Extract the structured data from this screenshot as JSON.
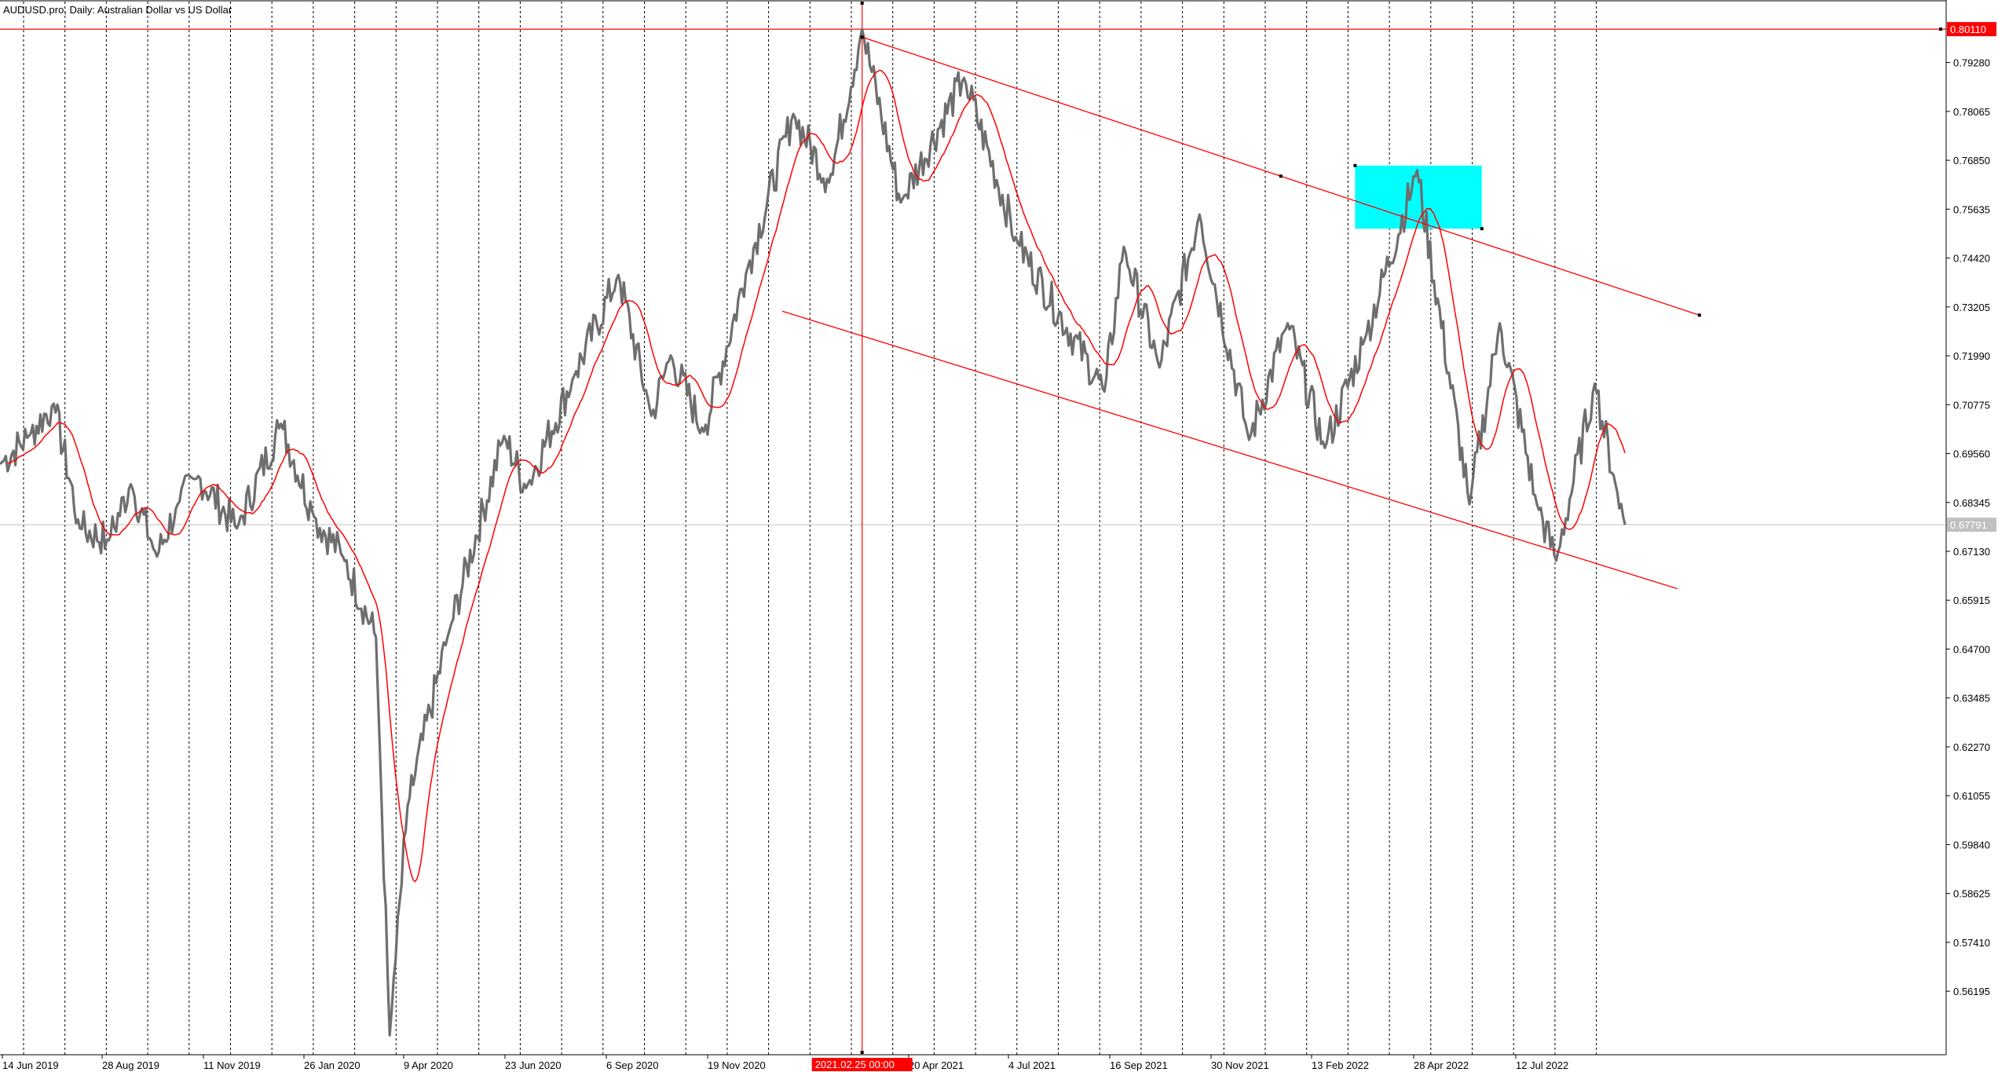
{
  "header": {
    "symbol_title": "AUDUSD.pro, Daily:  Australian Dollar vs US Dollar"
  },
  "colors": {
    "price_bars": "#6e6e6e",
    "moving_average": "#ff0000",
    "channel": "#ff0000",
    "period_separator": "#000000",
    "highlight_box": "#00ffff",
    "current_price_line": "#c0c0c0",
    "tag_background": "#ff0000",
    "current_tag_background": "#c0c0c0"
  },
  "chart_data": {
    "type": "line",
    "symbol": "AUDUSD.pro",
    "timeframe": "Daily",
    "description": "Australian Dollar vs US Dollar",
    "ylim": [
      0.553,
      0.806
    ],
    "y_ticks": [
      "0.79280",
      "0.78065",
      "0.76850",
      "0.75635",
      "0.74420",
      "0.73205",
      "0.71990",
      "0.70775",
      "0.69560",
      "0.68345",
      "0.67130",
      "0.65915",
      "0.64700",
      "0.63485",
      "0.62270",
      "0.61055",
      "0.59840",
      "0.58625",
      "0.57410",
      "0.56195"
    ],
    "x_tick_labels": [
      "14 Jun 2019",
      "28 Aug 2019",
      "11 Nov 2019",
      "26 Jan 2020",
      "9 Apr 2020",
      "23 Jun 2020",
      "6 Sep 2020",
      "19 Nov 2020",
      "20 Apr 2021",
      "4 Jul 2021",
      "16 Sep 2021",
      "30 Nov 2021",
      "13 Feb 2022",
      "28 Apr 2022",
      "12 Jul 2022"
    ],
    "highlighted_date_label": "2021.02.25 00:00",
    "high_price_label": "0.80110",
    "current_price_label": "0.67791",
    "current_price": 0.67791,
    "high_price": 0.8011,
    "price_series": [
      {
        "date": "2019-06-10",
        "value": 0.693
      },
      {
        "date": "2019-07-01",
        "value": 0.7
      },
      {
        "date": "2019-07-19",
        "value": 0.708
      },
      {
        "date": "2019-08-07",
        "value": 0.677
      },
      {
        "date": "2019-08-28",
        "value": 0.674
      },
      {
        "date": "2019-09-13",
        "value": 0.688
      },
      {
        "date": "2019-10-02",
        "value": 0.67
      },
      {
        "date": "2019-10-17",
        "value": 0.683
      },
      {
        "date": "2019-11-01",
        "value": 0.69
      },
      {
        "date": "2019-11-29",
        "value": 0.677
      },
      {
        "date": "2019-12-31",
        "value": 0.703
      },
      {
        "date": "2020-01-24",
        "value": 0.68
      },
      {
        "date": "2020-02-14",
        "value": 0.67
      },
      {
        "date": "2020-03-09",
        "value": 0.65
      },
      {
        "date": "2020-03-19",
        "value": 0.551
      },
      {
        "date": "2020-04-01",
        "value": 0.608
      },
      {
        "date": "2020-04-30",
        "value": 0.65
      },
      {
        "date": "2020-06-10",
        "value": 0.7
      },
      {
        "date": "2020-06-26",
        "value": 0.687
      },
      {
        "date": "2020-07-31",
        "value": 0.715
      },
      {
        "date": "2020-09-01",
        "value": 0.74
      },
      {
        "date": "2020-09-25",
        "value": 0.705
      },
      {
        "date": "2020-10-09",
        "value": 0.72
      },
      {
        "date": "2020-11-02",
        "value": 0.701
      },
      {
        "date": "2020-12-04",
        "value": 0.742
      },
      {
        "date": "2021-01-06",
        "value": 0.78
      },
      {
        "date": "2021-02-01",
        "value": 0.763
      },
      {
        "date": "2021-02-25",
        "value": 0.8011
      },
      {
        "date": "2021-03-25",
        "value": 0.758
      },
      {
        "date": "2021-05-10",
        "value": 0.789
      },
      {
        "date": "2021-06-18",
        "value": 0.748
      },
      {
        "date": "2021-08-20",
        "value": 0.711
      },
      {
        "date": "2021-09-03",
        "value": 0.747
      },
      {
        "date": "2021-09-29",
        "value": 0.717
      },
      {
        "date": "2021-10-28",
        "value": 0.755
      },
      {
        "date": "2021-12-03",
        "value": 0.699
      },
      {
        "date": "2021-12-31",
        "value": 0.728
      },
      {
        "date": "2022-01-27",
        "value": 0.697
      },
      {
        "date": "2022-02-25",
        "value": 0.724
      },
      {
        "date": "2022-04-04",
        "value": 0.766
      },
      {
        "date": "2022-05-12",
        "value": 0.683
      },
      {
        "date": "2022-06-03",
        "value": 0.728
      },
      {
        "date": "2022-06-30",
        "value": 0.683
      },
      {
        "date": "2022-07-14",
        "value": 0.669
      },
      {
        "date": "2022-08-11",
        "value": 0.713
      },
      {
        "date": "2022-08-26",
        "value": 0.688
      },
      {
        "date": "2022-09-02",
        "value": 0.6779
      }
    ],
    "channel_lines": [
      {
        "start": {
          "date": "2021-02-25",
          "value": 0.7991
        },
        "end": {
          "date": "2022-10-26",
          "value": 0.73
        }
      },
      {
        "start": {
          "date": "2020-12-29",
          "value": 0.731
        },
        "end": {
          "date": "2022-10-10",
          "value": 0.662
        }
      }
    ]
  }
}
